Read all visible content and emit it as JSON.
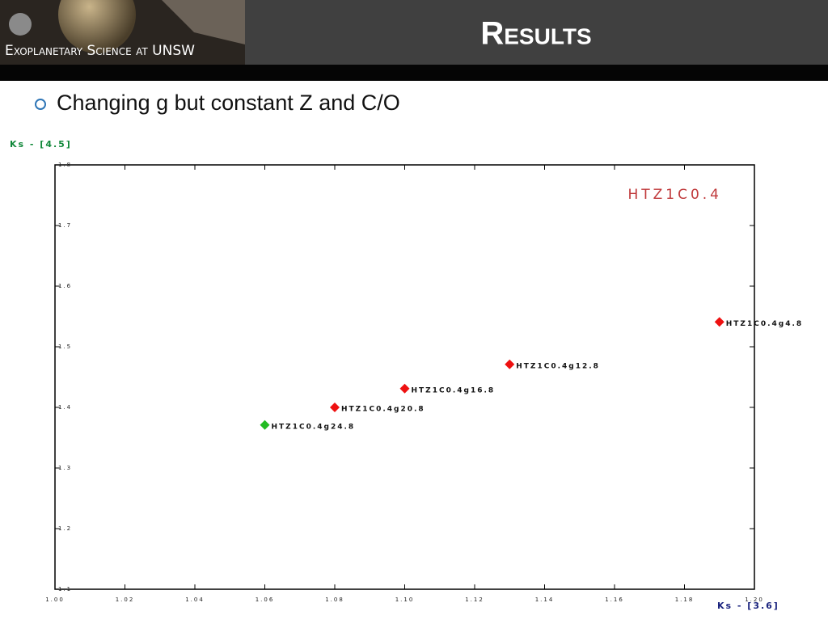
{
  "header": {
    "logo_text": "Exoplanetary Science at UNSW",
    "title": "Results"
  },
  "bullet": "Changing g but constant Z and C/O",
  "chart_data": {
    "type": "scatter",
    "x_label": "Ks - [3.6]",
    "y_label": "Ks - [4.5]",
    "annotation": "HTZ1C0.4",
    "x": [
      1.06,
      1.08,
      1.1,
      1.13,
      1.19
    ],
    "values": [
      1.371,
      1.4,
      1.431,
      1.471,
      1.541
    ],
    "point_labels": [
      "HTZ1C0.4g24.8",
      "HTZ1C0.4g20.8",
      "HTZ1C0.4g16.8",
      "HTZ1C0.4g12.8",
      "HTZ1C0.4g4.8"
    ],
    "colors": [
      "#22bb22",
      "#ee1111",
      "#ee1111",
      "#ee1111",
      "#ee1111"
    ],
    "annotation_color": "#c0393b",
    "xlim": [
      1.0,
      1.2
    ],
    "ylim": [
      1.1,
      1.8
    ],
    "xticks": [
      {
        "value": 1.0,
        "label": "1.00"
      },
      1.02,
      1.04,
      1.06,
      1.08,
      {
        "value": 1.1,
        "label": "1.10"
      },
      1.12,
      1.14,
      1.16,
      1.18,
      {
        "value": 1.2,
        "label": "1.20"
      }
    ],
    "yticks": [
      1.1,
      1.2,
      1.3,
      1.4,
      1.5,
      1.6,
      1.7,
      1.8
    ]
  }
}
